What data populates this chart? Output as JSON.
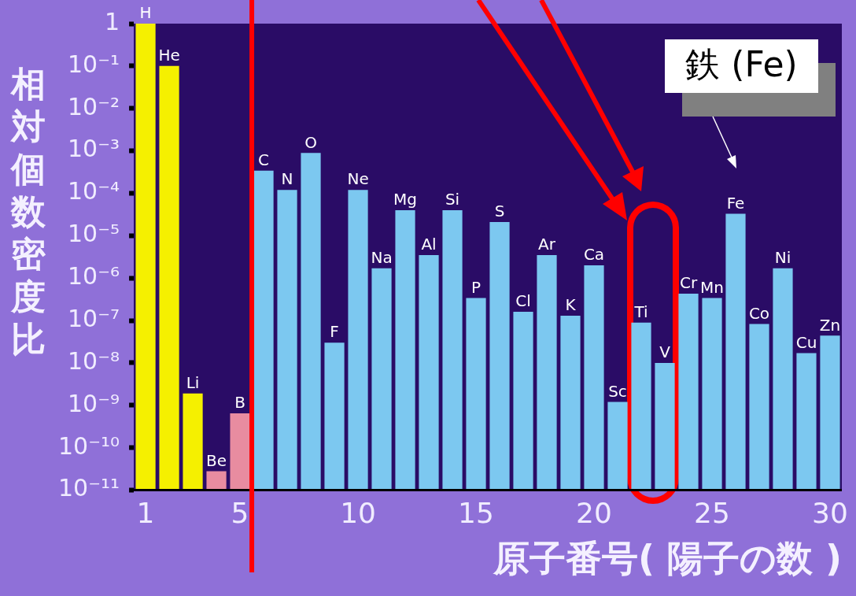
{
  "chart_data": {
    "type": "bar",
    "xlabel": "原子番号( 陽子の数 )",
    "ylabel": "相対個数密度比",
    "x": [
      1,
      2,
      3,
      4,
      5,
      6,
      7,
      8,
      9,
      10,
      11,
      12,
      13,
      14,
      15,
      16,
      17,
      18,
      19,
      20,
      21,
      22,
      23,
      24,
      25,
      26,
      27,
      28,
      29,
      30
    ],
    "values": [
      1,
      0.1,
      1.9e-09,
      2.8e-11,
      6.5e-10,
      0.00034,
      0.00012,
      0.00089,
      3e-08,
      0.00012,
      1.7e-06,
      4e-05,
      3.5e-06,
      4e-05,
      3.4e-07,
      2.1e-05,
      1.6e-07,
      3.5e-06,
      1.3e-07,
      2e-06,
      1.2e-09,
      8.9e-08,
      1e-08,
      4.3e-07,
      3.4e-07,
      3.3e-05,
      8.3e-08,
      1.7e-06,
      1.7e-08,
      4.4e-08
    ],
    "value_labels": [
      "H",
      "He",
      "Li",
      "Be",
      "B",
      "C",
      "N",
      "O",
      "F",
      "Ne",
      "Na",
      "Mg",
      "Al",
      "Si",
      "P",
      "S",
      "Cl",
      "Ar",
      "K",
      "Ca",
      "Sc",
      "Ti",
      "V",
      "Cr",
      "Mn",
      "Fe",
      "Co",
      "Ni",
      "Cu",
      "Zn"
    ],
    "colors": [
      "#f5f000",
      "#f5f000",
      "#f5f000",
      "#e88ca0",
      "#e88ca0",
      "#7cc8f0",
      "#7cc8f0",
      "#7cc8f0",
      "#7cc8f0",
      "#7cc8f0",
      "#7cc8f0",
      "#7cc8f0",
      "#7cc8f0",
      "#7cc8f0",
      "#7cc8f0",
      "#7cc8f0",
      "#7cc8f0",
      "#7cc8f0",
      "#7cc8f0",
      "#7cc8f0",
      "#7cc8f0",
      "#7cc8f0",
      "#7cc8f0",
      "#7cc8f0",
      "#7cc8f0",
      "#7cc8f0",
      "#7cc8f0",
      "#7cc8f0",
      "#7cc8f0",
      "#7cc8f0"
    ],
    "log": "y",
    "xlim": [
      0.5,
      30.5
    ],
    "xticks": [
      1,
      5,
      10,
      15,
      20,
      25,
      30
    ],
    "ylim": [
      1e-11,
      1
    ],
    "yticks": [
      1,
      {
        "value": 0.1,
        "label": "10⁻¹"
      },
      {
        "value": 0.01,
        "label": "10⁻²"
      },
      {
        "value": 0.001,
        "label": "10⁻³"
      },
      {
        "value": 0.0001,
        "label": "10⁻⁴"
      },
      {
        "value": 1e-05,
        "label": "10⁻⁵"
      },
      {
        "value": 1e-06,
        "label": "10⁻⁶"
      },
      {
        "value": 1e-07,
        "label": "10⁻⁷"
      },
      {
        "value": 1e-08,
        "label": "10⁻⁸"
      },
      {
        "value": 1e-09,
        "label": "10⁻⁹"
      },
      {
        "value": 1e-10,
        "label": "10⁻¹⁰"
      },
      {
        "value": 1e-11,
        "label": "10⁻¹¹"
      }
    ],
    "ref_lines": [
      {
        "axis": "x",
        "value": 5.5,
        "color": "#ff0000"
      }
    ],
    "annotations": [
      "鉄 (Fe)"
    ]
  }
}
